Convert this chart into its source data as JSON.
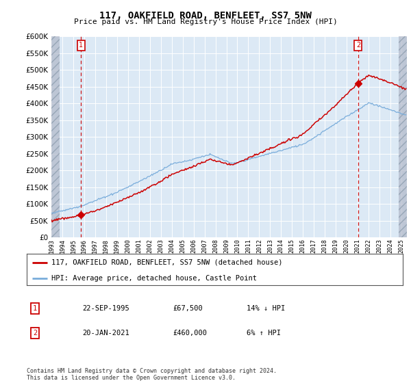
{
  "title": "117, OAKFIELD ROAD, BENFLEET, SS7 5NW",
  "subtitle": "Price paid vs. HM Land Registry's House Price Index (HPI)",
  "legend_line1": "117, OAKFIELD ROAD, BENFLEET, SS7 5NW (detached house)",
  "legend_line2": "HPI: Average price, detached house, Castle Point",
  "annotation1_date": "22-SEP-1995",
  "annotation1_price": "£67,500",
  "annotation1_hpi": "14% ↓ HPI",
  "annotation2_date": "20-JAN-2021",
  "annotation2_price": "£460,000",
  "annotation2_hpi": "6% ↑ HPI",
  "footer": "Contains HM Land Registry data © Crown copyright and database right 2024.\nThis data is licensed under the Open Government Licence v3.0.",
  "price_color": "#cc0000",
  "hpi_color": "#7aaddb",
  "marker_color": "#cc0000",
  "sale1_year": 1995.72,
  "sale1_price": 67500,
  "sale2_year": 2021.05,
  "sale2_price": 460000,
  "ylim_min": 0,
  "ylim_max": 600000,
  "xlim_min": 1993.0,
  "xlim_max": 2025.5,
  "background_color": "#ffffff",
  "plot_bg_color": "#dce9f5",
  "grid_color": "#ffffff",
  "hatch_color": "#b0b8c8"
}
